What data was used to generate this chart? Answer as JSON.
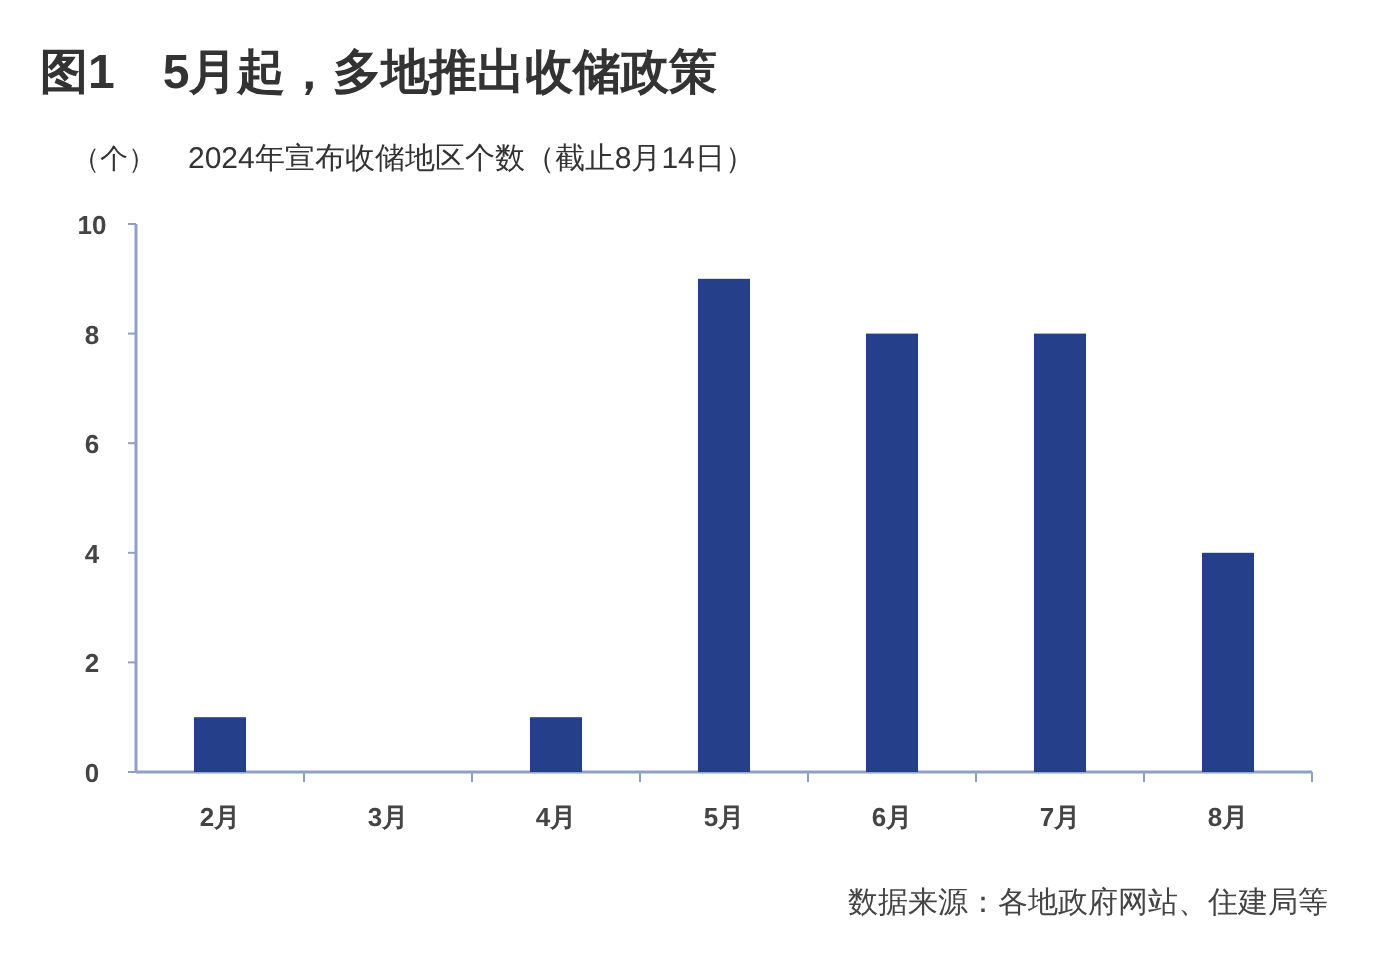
{
  "chart_data": {
    "type": "bar",
    "title": "图1　5月起，多地推出收储政策",
    "subtitle": "2024年宣布收储地区个数（截止8月14日）",
    "ylabel": "（个）",
    "categories": [
      "2月",
      "3月",
      "4月",
      "5月",
      "6月",
      "7月",
      "8月"
    ],
    "values": [
      1,
      0,
      1,
      9,
      8,
      8,
      4
    ],
    "color": "#253f8b",
    "ylim": [
      0,
      10
    ],
    "yticks": [
      0,
      2,
      4,
      6,
      8,
      10
    ],
    "annotations": [
      "数据来源：各地政府网站、住建局等"
    ]
  }
}
